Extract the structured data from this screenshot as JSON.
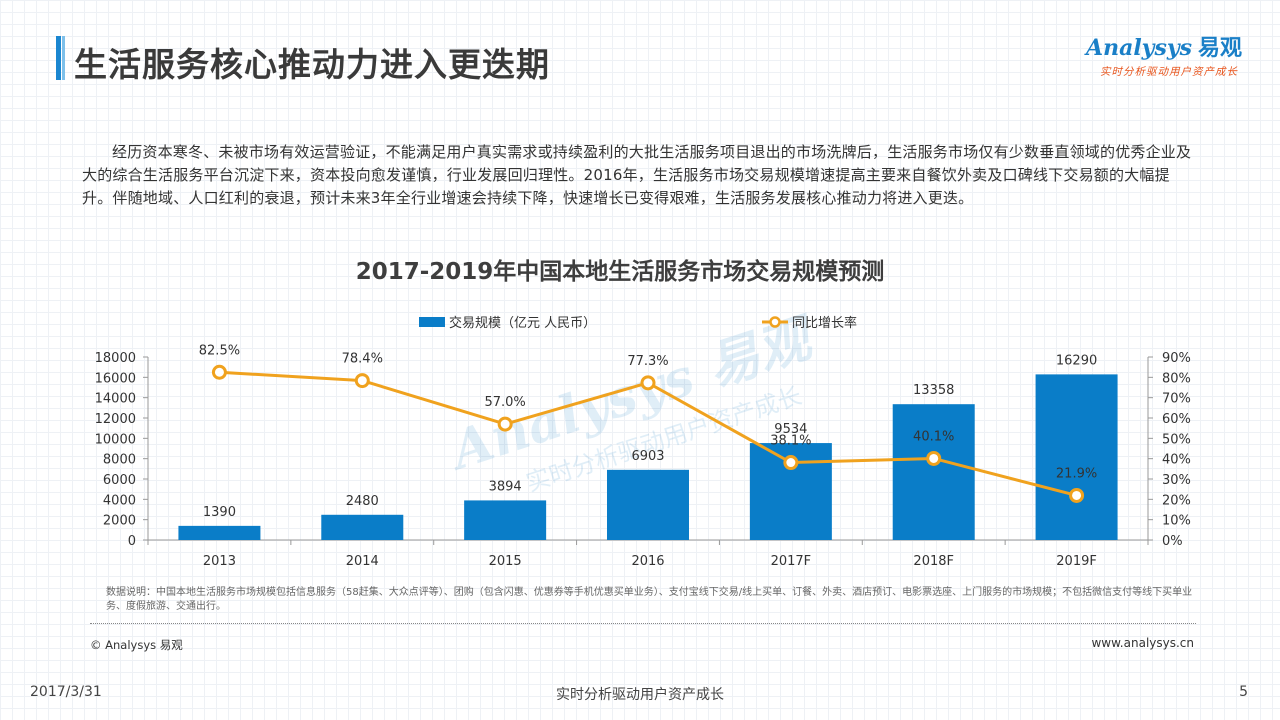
{
  "page": {
    "title": "生活服务核心推动力进入更迭期",
    "intro": "经历资本寒冬、未被市场有效运营验证，不能满足用户真实需求或持续盈利的大批生活服务项目退出的市场洗牌后，生活服务市场仅有少数垂直领域的优秀企业及大的综合生活服务平台沉淀下来，资本投向愈发谨慎，行业发展回归理性。2016年，生活服务市场交易规模增速提高主要来自餐饮外卖及口碑线下交易额的大幅提升。伴随地域、人口红利的衰退，预计未来3年全行业增速会持续下降，快速增长已变得艰难，生活服务发展核心推动力将进入更迭。",
    "note": "数据说明：中国本地生活服务市场规模包括信息服务（58赶集、大众点评等）、团购（包含闪惠、优惠券等手机优惠买单业务）、支付宝线下交易/线上买单、订餐、外卖、酒店预订、电影票选座、上门服务的市场规模；不包括微信支付等线下买单业务、度假旅游、交通出行。",
    "copyright": "© Analysys 易观",
    "website": "www.analysys.cn"
  },
  "logo": {
    "brand": "Analysys",
    "brand_cn": "易观",
    "slogan": "实时分析驱动用户资产成长"
  },
  "footer": {
    "date": "2017/3/31",
    "slogan": "实时分析驱动用户资产成长",
    "page_number": "5"
  },
  "colors": {
    "bar": "#0a7dc8",
    "line": "#f0a21e",
    "title_accent": "#1a86d0"
  },
  "chart_data": {
    "type": "bar",
    "title": "2017-2019年中国本地生活服务市场交易规模预测",
    "categories": [
      "2013",
      "2014",
      "2015",
      "2016",
      "2017F",
      "2018F",
      "2019F"
    ],
    "series": [
      {
        "name": "交易规模（亿元 人民币）",
        "type": "bar",
        "axis": "left",
        "values": [
          1390,
          2480,
          3894,
          6903,
          9534,
          13358,
          16290
        ],
        "labels": [
          "1390",
          "2480",
          "3894",
          "6903",
          "9534",
          "13358",
          "16290"
        ]
      },
      {
        "name": "同比增长率",
        "type": "line",
        "axis": "right",
        "values": [
          82.5,
          78.4,
          57.0,
          77.3,
          38.1,
          40.1,
          21.9
        ],
        "labels": [
          "82.5%",
          "78.4%",
          "57.0%",
          "77.3%",
          "38.1%",
          "40.1%",
          "21.9%"
        ]
      }
    ],
    "y_left": {
      "min": 0,
      "max": 18000,
      "ticks": [
        "0",
        "2000",
        "4000",
        "6000",
        "8000",
        "10000",
        "12000",
        "14000",
        "16000",
        "18000"
      ]
    },
    "y_right": {
      "min": 0,
      "max": 90,
      "ticks": [
        "0%",
        "10%",
        "20%",
        "30%",
        "40%",
        "50%",
        "60%",
        "70%",
        "80%",
        "90%"
      ]
    },
    "legend_position": "top-center",
    "grid": false
  }
}
